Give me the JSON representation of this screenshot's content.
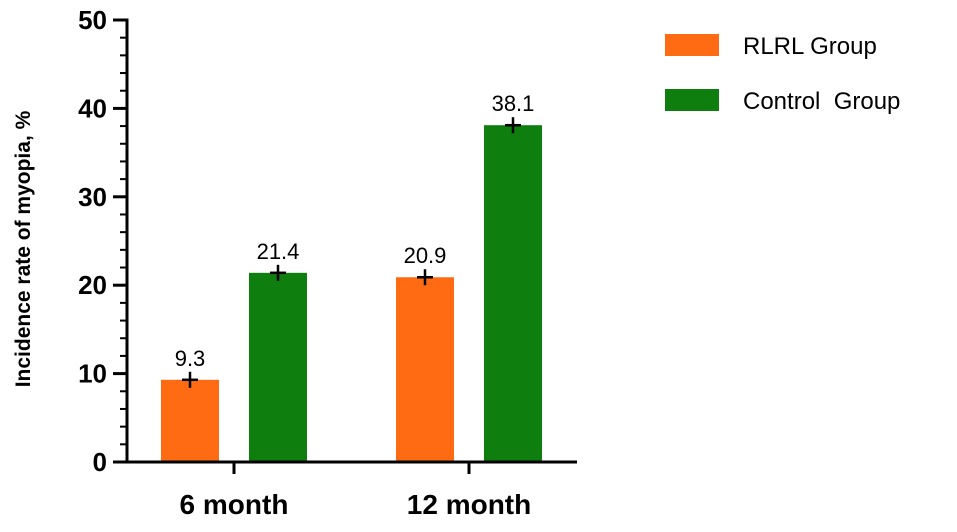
{
  "chart_data": {
    "type": "bar",
    "categories": [
      "6 month",
      "12 month"
    ],
    "series": [
      {
        "name": "RLRL Group",
        "values": [
          9.3,
          20.9
        ],
        "color": "#FF6B12"
      },
      {
        "name": "Control  Group",
        "values": [
          21.4,
          38.1
        ],
        "color": "#0E7E0E"
      }
    ],
    "data_labels": [
      [
        "9.3",
        "20.9"
      ],
      [
        "21.4",
        "38.1"
      ]
    ],
    "ylabel": "Incidence rate of myopia, %",
    "xlabel": "",
    "ylim": [
      0,
      50
    ],
    "yticks": [
      0,
      10,
      20,
      30,
      40,
      50
    ],
    "y_minor_step": 2,
    "grid": false,
    "legend_position": "top-right",
    "marker": "plus"
  }
}
